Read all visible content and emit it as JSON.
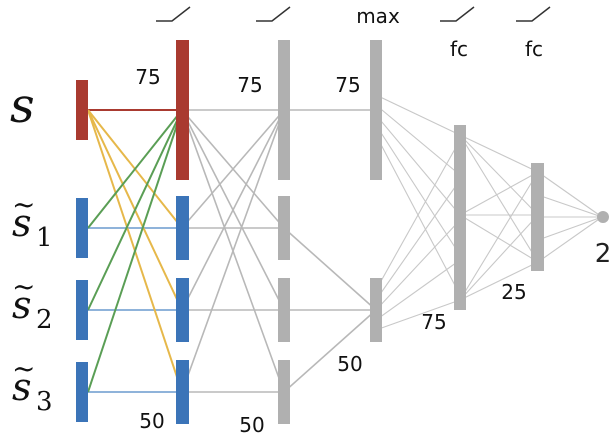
{
  "inputs": {
    "s": {
      "symbol": "s",
      "subscript": ""
    },
    "s1": {
      "symbol": "s",
      "subscript": "1"
    },
    "s2": {
      "symbol": "s",
      "subscript": "2"
    },
    "s3": {
      "symbol": "s",
      "subscript": "3"
    }
  },
  "headers": {
    "relu1": "relu-icon",
    "relu2": "relu-icon",
    "max": "max",
    "fc1": "fc",
    "fc2": "fc",
    "relu3": "relu-icon",
    "relu4": "relu-icon"
  },
  "labels": {
    "l1_top": "75",
    "l1_bottom": "50",
    "l2_top": "75",
    "l2_bottom": "50",
    "l3_top": "75",
    "l3_bottom": "50",
    "fc1_size": "75",
    "fc2_size": "25",
    "output": "2"
  },
  "colors": {
    "red": "#a93a30",
    "blue": "#3b74b8",
    "gray": "#b0b0b0",
    "green": "#5a9e55",
    "yellow": "#e6b84a"
  }
}
